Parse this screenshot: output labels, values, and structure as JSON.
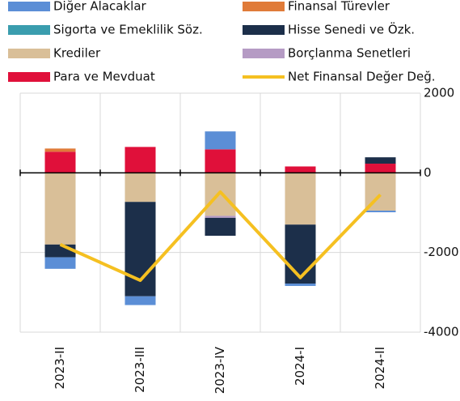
{
  "chart_data": {
    "type": "bar",
    "stacked": true,
    "categories": [
      "2023-II",
      "2023-III",
      "2023-IV",
      "2024-I",
      "2024-II"
    ],
    "series": [
      {
        "name": "Diğer Alacaklar",
        "color": "#5b8ed6",
        "values": [
          -290,
          -220,
          450,
          -60,
          -40
        ]
      },
      {
        "name": "Finansal Türevler",
        "color": "#e07b39",
        "values": [
          80,
          0,
          0,
          0,
          0
        ]
      },
      {
        "name": "Sigorta ve Emeklilik Söz.",
        "color": "#3a9dae",
        "values": [
          0,
          0,
          0,
          0,
          0
        ]
      },
      {
        "name": "Hisse Senedi ve Özk.",
        "color": "#1c2f4a",
        "values": [
          -320,
          -2370,
          -450,
          -1480,
          160
        ]
      },
      {
        "name": "Krediler",
        "color": "#d9bf98",
        "values": [
          -1800,
          -730,
          -1080,
          -1300,
          -950
        ]
      },
      {
        "name": "Borçlanma Senetleri",
        "color": "#b59bc4",
        "values": [
          0,
          0,
          -50,
          0,
          0
        ]
      },
      {
        "name": "Para ve Mevduat",
        "color": "#e0103a",
        "values": [
          530,
          650,
          590,
          160,
          230
        ]
      },
      {
        "name": "Net Finansal Değer Değ.",
        "color": "#f5c021",
        "type": "line",
        "values": [
          -1800,
          -2700,
          -480,
          -2630,
          -550
        ]
      }
    ],
    "ylim": [
      -4000,
      2000
    ],
    "yticks": [
      2000,
      0,
      -2000,
      -4000
    ],
    "grid": true
  }
}
